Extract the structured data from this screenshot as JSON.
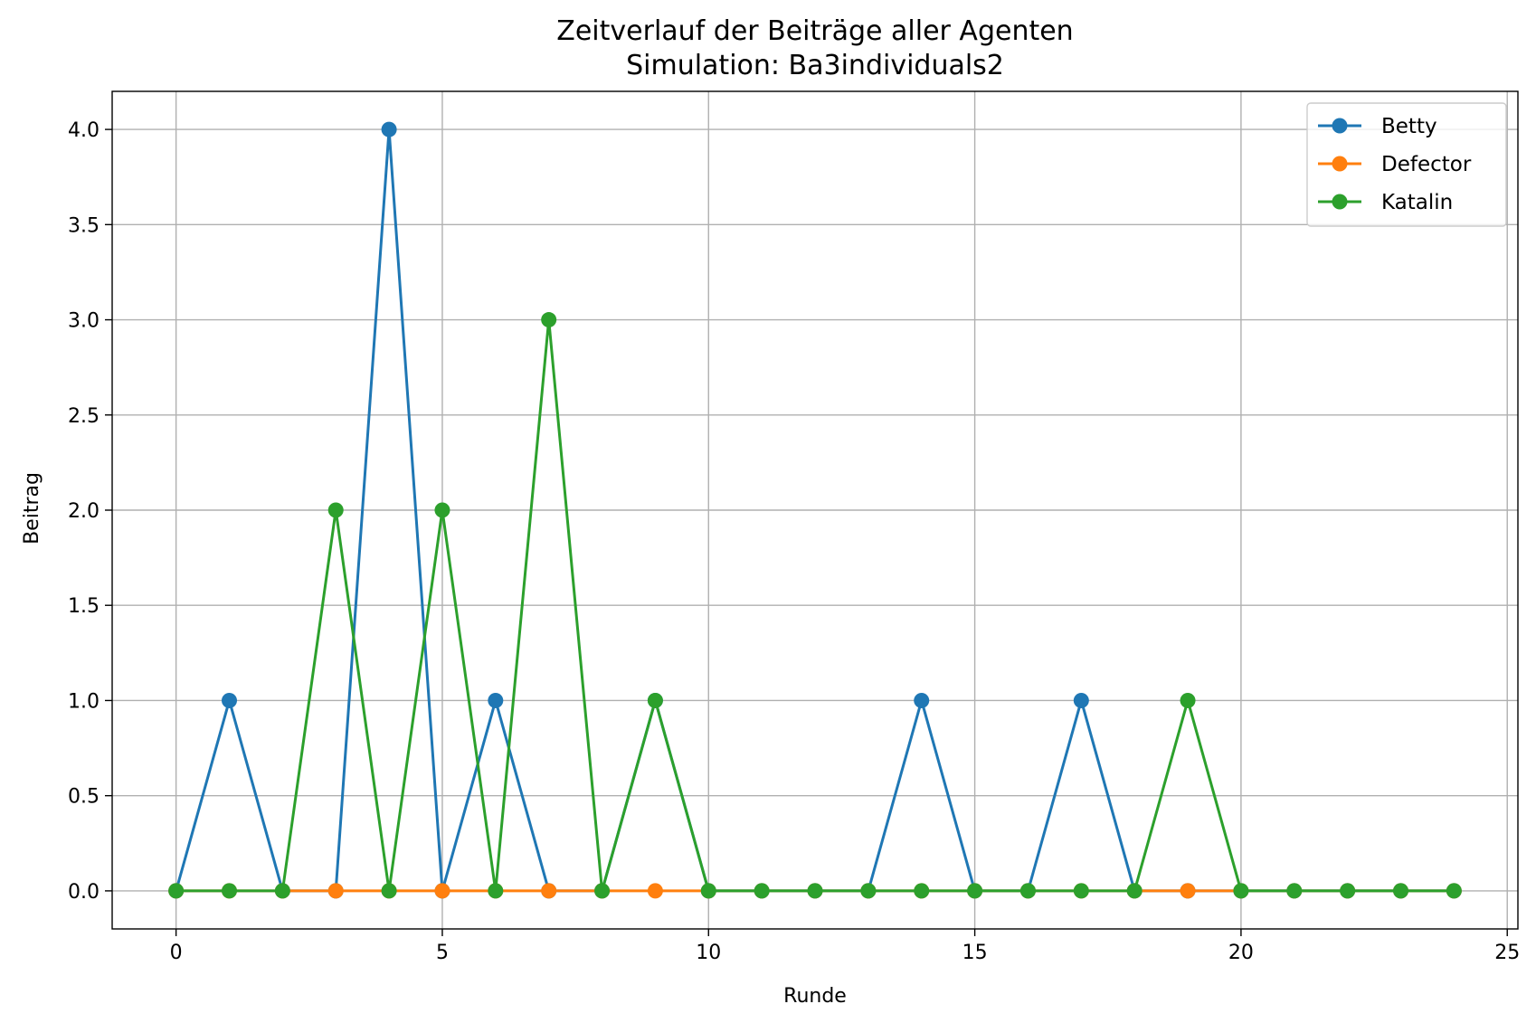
{
  "chart_data": {
    "type": "line",
    "title": "Zeitverlauf der Beiträge aller Agenten",
    "subtitle": "Simulation: Ba3individuals2",
    "xlabel": "Runde",
    "ylabel": "Beitrag",
    "xlim": [
      -1.2,
      25.2
    ],
    "ylim": [
      -0.2,
      4.2
    ],
    "xticks": [
      0,
      5,
      10,
      15,
      20,
      25
    ],
    "yticks": [
      0.0,
      0.5,
      1.0,
      1.5,
      2.0,
      2.5,
      3.0,
      3.5,
      4.0
    ],
    "xtick_labels": [
      "0",
      "5",
      "10",
      "15",
      "20",
      "25"
    ],
    "ytick_labels": [
      "0.0",
      "0.5",
      "1.0",
      "1.5",
      "2.0",
      "2.5",
      "3.0",
      "3.5",
      "4.0"
    ],
    "grid": true,
    "legend_position": "top-right",
    "x": [
      0,
      1,
      2,
      3,
      4,
      5,
      6,
      7,
      8,
      9,
      10,
      11,
      12,
      13,
      14,
      15,
      16,
      17,
      18,
      19,
      20,
      21,
      22,
      23,
      24
    ],
    "series": [
      {
        "name": "Betty",
        "color": "#1f77b4",
        "values": [
          0,
          1,
          0,
          0,
          4,
          0,
          1,
          0,
          0,
          1,
          0,
          0,
          0,
          0,
          1,
          0,
          0,
          1,
          0,
          0,
          0,
          0,
          0,
          0,
          0
        ]
      },
      {
        "name": "Defector",
        "color": "#ff7f0e",
        "values": [
          0,
          0,
          0,
          0,
          0,
          0,
          0,
          0,
          0,
          0,
          0,
          0,
          0,
          0,
          0,
          0,
          0,
          0,
          0,
          0,
          0,
          0,
          0,
          0,
          0
        ]
      },
      {
        "name": "Katalin",
        "color": "#2ca02c",
        "values": [
          0,
          0,
          0,
          2,
          0,
          2,
          0,
          3,
          0,
          1,
          0,
          0,
          0,
          0,
          0,
          0,
          0,
          0,
          0,
          1,
          0,
          0,
          0,
          0,
          0
        ]
      }
    ]
  }
}
